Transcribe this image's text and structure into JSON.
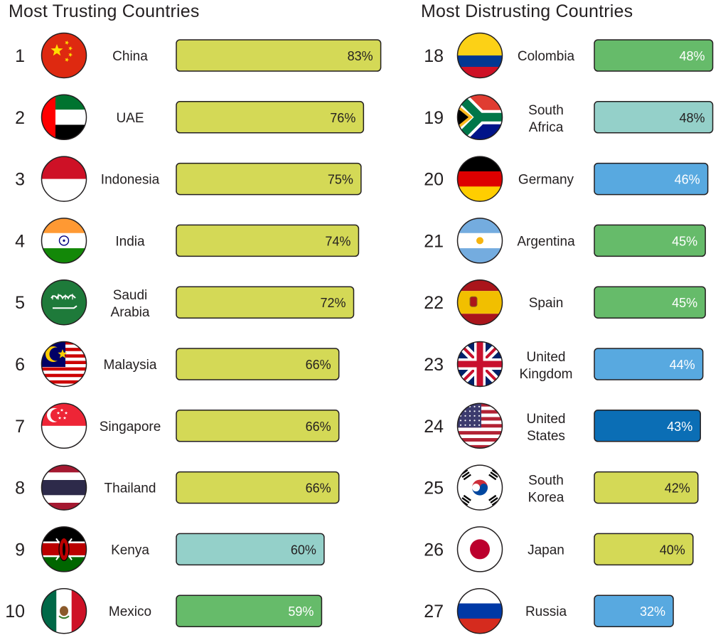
{
  "colors": {
    "yellow": "#d4d956",
    "teal": "#94d0c9",
    "green": "#66bb6a",
    "lightblue": "#58a9e0",
    "darkblue": "#0b6eb5",
    "text": "#231f20"
  },
  "chart_data": [
    {
      "type": "bar",
      "orientation": "horizontal",
      "title": "Most Trusting Countries",
      "ranks": [
        1,
        2,
        3,
        4,
        5,
        6,
        7,
        8,
        9,
        10
      ],
      "categories": [
        "China",
        "UAE",
        "Indonesia",
        "India",
        "Saudi Arabia",
        "Malaysia",
        "Singapore",
        "Thailand",
        "Kenya",
        "Mexico"
      ],
      "name_lines": [
        [
          "China"
        ],
        [
          "UAE"
        ],
        [
          "Indonesia"
        ],
        [
          "India"
        ],
        [
          "Saudi",
          "Arabia"
        ],
        [
          "Malaysia"
        ],
        [
          "Singapore"
        ],
        [
          "Thailand"
        ],
        [
          "Kenya"
        ],
        [
          "Mexico"
        ]
      ],
      "flags": [
        "china-flag",
        "uae-flag",
        "indonesia-flag",
        "india-flag",
        "saudi-arabia-flag",
        "malaysia-flag",
        "singapore-flag",
        "thailand-flag",
        "kenya-flag",
        "mexico-flag"
      ],
      "values": [
        83,
        76,
        75,
        74,
        72,
        66,
        66,
        66,
        60,
        59
      ],
      "labels": [
        "83%",
        "76%",
        "75%",
        "74%",
        "72%",
        "66%",
        "66%",
        "66%",
        "60%",
        "59%"
      ],
      "bar_colors": [
        "yellow",
        "yellow",
        "yellow",
        "yellow",
        "yellow",
        "yellow",
        "yellow",
        "yellow",
        "teal",
        "green"
      ]
    },
    {
      "type": "bar",
      "orientation": "horizontal",
      "title": "Most Distrusting Countries",
      "ranks": [
        18,
        19,
        20,
        21,
        22,
        23,
        24,
        25,
        26,
        27
      ],
      "categories": [
        "Colombia",
        "South Africa",
        "Germany",
        "Argentina",
        "Spain",
        "United Kingdom",
        "United States",
        "South Korea",
        "Japan",
        "Russia"
      ],
      "name_lines": [
        [
          "Colombia"
        ],
        [
          "South",
          "Africa"
        ],
        [
          "Germany"
        ],
        [
          "Argentina"
        ],
        [
          "Spain"
        ],
        [
          "United",
          "Kingdom"
        ],
        [
          "United",
          "States"
        ],
        [
          "South",
          "Korea"
        ],
        [
          "Japan"
        ],
        [
          "Russia"
        ]
      ],
      "flags": [
        "colombia-flag",
        "south-africa-flag",
        "germany-flag",
        "argentina-flag",
        "spain-flag",
        "united-kingdom-flag",
        "united-states-flag",
        "south-korea-flag",
        "japan-flag",
        "russia-flag"
      ],
      "values": [
        48,
        48,
        46,
        45,
        45,
        44,
        43,
        42,
        40,
        32
      ],
      "labels": [
        "48%",
        "48%",
        "46%",
        "45%",
        "45%",
        "44%",
        "43%",
        "42%",
        "40%",
        "32%"
      ],
      "bar_colors": [
        "green",
        "teal",
        "lightblue",
        "green",
        "green",
        "lightblue",
        "darkblue",
        "yellow",
        "yellow",
        "lightblue"
      ]
    }
  ]
}
